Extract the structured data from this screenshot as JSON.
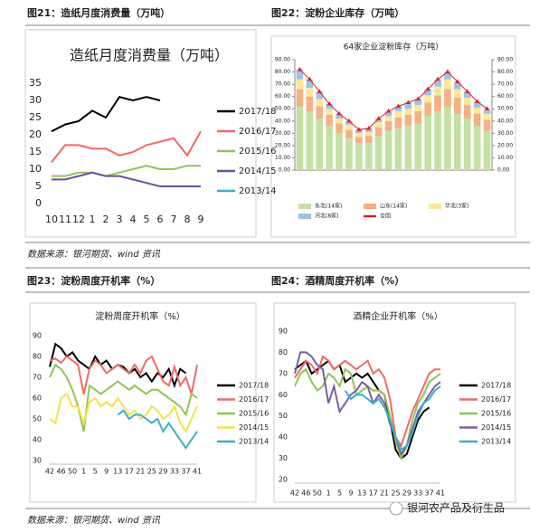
{
  "headings": [
    "图21：造纸月度消费量（万吨）",
    "图22：淀粉企业库存（万吨）",
    "图23：淀粉周度开机率（%）",
    "图24：酒精周度开机率（%）"
  ],
  "sources": [
    "数据来源：银河期货、wind 资讯",
    "数据来源：银河期货、wind 资讯"
  ],
  "watermark": "银河农产品及衍生品",
  "chart_data": [
    {
      "type": "line",
      "title": "造纸月度消费量（万吨）",
      "categories": [
        "10",
        "11",
        "12",
        "1",
        "2",
        "3",
        "4",
        "5",
        "6",
        "7",
        "8",
        "9"
      ],
      "ylim": [
        0,
        35
      ],
      "yticks": [
        0,
        5,
        10,
        15,
        20,
        25,
        30,
        35
      ],
      "series": [
        {
          "name": "2017/18",
          "color": "#000000",
          "values": [
            21,
            23,
            24,
            27,
            25,
            31,
            30,
            31,
            30,
            null,
            null,
            null
          ]
        },
        {
          "name": "2016/17",
          "color": "#f06a66",
          "values": [
            12,
            17,
            17,
            16,
            16,
            14,
            15,
            17,
            18,
            19,
            14,
            21
          ]
        },
        {
          "name": "2015/16",
          "color": "#92c353",
          "values": [
            8,
            8,
            9,
            9,
            8,
            9,
            10,
            11,
            10,
            10,
            11,
            11
          ]
        },
        {
          "name": "2014/15",
          "color": "#6e4f9e",
          "values": [
            7,
            7,
            8,
            9,
            8,
            8,
            7,
            6,
            5,
            5,
            5,
            5
          ]
        },
        {
          "name": "2013/14",
          "color": "#3bb0c4",
          "values": [
            null,
            null,
            null,
            null,
            null,
            null,
            null,
            null,
            null,
            null,
            null,
            null
          ]
        }
      ]
    },
    {
      "type": "bar",
      "stacked": true,
      "title": "64家企业淀粉库存（万吨）",
      "categories": [
        null,
        null,
        null,
        null,
        null,
        null,
        null,
        null,
        null,
        null,
        null,
        null,
        null,
        null,
        null,
        null,
        null,
        null,
        null,
        null
      ],
      "ylim": [
        0,
        90
      ],
      "yticks": [
        {
          "value": 0,
          "label": "0.00"
        },
        {
          "value": 10,
          "label": "10.00"
        },
        {
          "value": 20,
          "label": "20.00"
        },
        {
          "value": 30,
          "label": "30.00"
        },
        {
          "value": 40,
          "label": "40.00"
        },
        {
          "value": 50,
          "label": "50.00"
        },
        {
          "value": 60,
          "label": "60.00"
        },
        {
          "value": 70,
          "label": "70.00"
        },
        {
          "value": 80,
          "label": "80.00"
        },
        {
          "value": 90,
          "label": "90.00"
        }
      ],
      "y2lim": [
        0,
        90
      ],
      "y2ticks": [
        {
          "value": 0,
          "label": "0.00"
        },
        {
          "value": 10,
          "label": "10.00"
        },
        {
          "value": 20,
          "label": "20.00"
        },
        {
          "value": 30,
          "label": "30.00"
        },
        {
          "value": 40,
          "label": "40.00"
        },
        {
          "value": 50,
          "label": "50.00"
        },
        {
          "value": 60,
          "label": "60.00"
        },
        {
          "value": 70,
          "label": "70.00"
        },
        {
          "value": 80,
          "label": "80.00"
        },
        {
          "value": 90,
          "label": "90.00"
        }
      ],
      "series": [
        {
          "name": "东北(14家)",
          "color": "#c5e0a5",
          "values": [
            52,
            48,
            42,
            36,
            30,
            26,
            22,
            22,
            28,
            32,
            34,
            36,
            38,
            44,
            48,
            52,
            46,
            42,
            36,
            32
          ]
        },
        {
          "name": "山东(14家)",
          "color": "#f4b183",
          "values": [
            14,
            12,
            10,
            9,
            8,
            7,
            5,
            6,
            7,
            8,
            9,
            9,
            10,
            11,
            13,
            14,
            13,
            11,
            10,
            9
          ]
        },
        {
          "name": "华北(3家)",
          "color": "#ffe699",
          "values": [
            8,
            7,
            6,
            5,
            4,
            4,
            3,
            3,
            4,
            4,
            5,
            5,
            5,
            6,
            7,
            8,
            7,
            6,
            5,
            5
          ]
        },
        {
          "name": "河北(8家)",
          "color": "#9dc3e6",
          "values": [
            8,
            7,
            6,
            4,
            4,
            3,
            3,
            3,
            3,
            4,
            4,
            5,
            5,
            5,
            6,
            6,
            6,
            5,
            5,
            4
          ]
        },
        {
          "name": "全国",
          "type": "line",
          "color": "#e02020",
          "values": [
            82,
            74,
            64,
            54,
            46,
            40,
            33,
            34,
            42,
            48,
            52,
            55,
            58,
            66,
            74,
            80,
            72,
            64,
            56,
            50
          ]
        }
      ]
    },
    {
      "type": "line",
      "title": "淀粉周度开机率（%）",
      "categories": [
        "42",
        null,
        "46",
        null,
        "50",
        null,
        "1",
        null,
        "5",
        null,
        "9",
        null,
        "13",
        null,
        "17",
        null,
        "21",
        null,
        "25",
        null,
        "29",
        null,
        "33",
        null,
        "37",
        null,
        "41"
      ],
      "ylim": [
        30,
        90
      ],
      "yticks": [
        30,
        40,
        50,
        60,
        70,
        80,
        90
      ],
      "series": [
        {
          "name": "2017/18",
          "color": "#000000",
          "values": [
            75,
            86,
            84,
            80,
            82,
            78,
            76,
            74,
            80,
            76,
            78,
            74,
            76,
            75,
            72,
            74,
            70,
            72,
            68,
            72,
            70,
            74,
            66,
            74,
            72,
            null,
            null
          ]
        },
        {
          "name": "2016/17",
          "color": "#f06a66",
          "values": [
            78,
            79,
            77,
            80,
            78,
            76,
            62,
            74,
            78,
            76,
            72,
            74,
            76,
            74,
            72,
            76,
            72,
            78,
            80,
            74,
            68,
            66,
            75,
            66,
            70,
            62,
            76
          ]
        },
        {
          "name": "2015/16",
          "color": "#92c353",
          "values": [
            70,
            76,
            74,
            70,
            64,
            56,
            44,
            66,
            64,
            62,
            64,
            66,
            68,
            66,
            64,
            66,
            64,
            62,
            64,
            64,
            62,
            60,
            58,
            56,
            52,
            62,
            60
          ]
        },
        {
          "name": "2014/15",
          "color": "#f2e24a",
          "values": [
            50,
            48,
            60,
            62,
            56,
            56,
            48,
            58,
            60,
            56,
            58,
            56,
            60,
            56,
            52,
            54,
            50,
            52,
            56,
            54,
            50,
            52,
            56,
            48,
            44,
            50,
            56
          ]
        },
        {
          "name": "2013/14",
          "color": "#3bb0c4",
          "values": [
            null,
            null,
            null,
            null,
            null,
            null,
            null,
            null,
            null,
            null,
            null,
            null,
            52,
            54,
            50,
            52,
            52,
            50,
            48,
            50,
            44,
            48,
            44,
            40,
            36,
            40,
            44
          ]
        }
      ]
    },
    {
      "type": "line",
      "title": "酒精企业开机率（%）",
      "categories": [
        "42",
        null,
        "46",
        null,
        "50",
        null,
        "1",
        null,
        "5",
        null,
        "9",
        null,
        "13",
        null,
        "17",
        null,
        "21",
        null,
        "25",
        null,
        "29",
        null,
        "33",
        null,
        "37",
        null,
        "41"
      ],
      "ylim": [
        20,
        90
      ],
      "yticks": [
        20,
        30,
        40,
        50,
        60,
        70,
        80,
        90
      ],
      "series": [
        {
          "name": "2017/18",
          "color": "#000000",
          "values": [
            72,
            74,
            76,
            70,
            72,
            74,
            76,
            72,
            74,
            66,
            68,
            70,
            68,
            70,
            66,
            62,
            60,
            48,
            34,
            30,
            32,
            40,
            48,
            52,
            54,
            null,
            null
          ]
        },
        {
          "name": "2016/17",
          "color": "#f06a66",
          "values": [
            68,
            72,
            76,
            74,
            70,
            78,
            76,
            72,
            74,
            76,
            74,
            72,
            74,
            76,
            70,
            72,
            68,
            58,
            40,
            36,
            44,
            52,
            58,
            64,
            70,
            72,
            72
          ]
        },
        {
          "name": "2015/16",
          "color": "#92c353",
          "values": [
            64,
            70,
            72,
            66,
            62,
            64,
            70,
            68,
            64,
            72,
            70,
            60,
            62,
            64,
            62,
            62,
            60,
            50,
            38,
            30,
            36,
            48,
            56,
            60,
            66,
            68,
            70
          ]
        },
        {
          "name": "2014/15",
          "color": "#7b5ea7",
          "values": [
            70,
            80,
            80,
            78,
            74,
            72,
            56,
            64,
            52,
            56,
            60,
            62,
            66,
            64,
            56,
            60,
            56,
            46,
            40,
            32,
            36,
            44,
            52,
            56,
            60,
            64,
            66
          ]
        },
        {
          "name": "2013/14",
          "color": "#3bb0c4",
          "values": [
            null,
            null,
            null,
            null,
            null,
            null,
            null,
            null,
            null,
            62,
            58,
            60,
            60,
            58,
            56,
            58,
            54,
            48,
            40,
            34,
            36,
            42,
            50,
            56,
            58,
            62,
            64
          ]
        }
      ]
    }
  ]
}
